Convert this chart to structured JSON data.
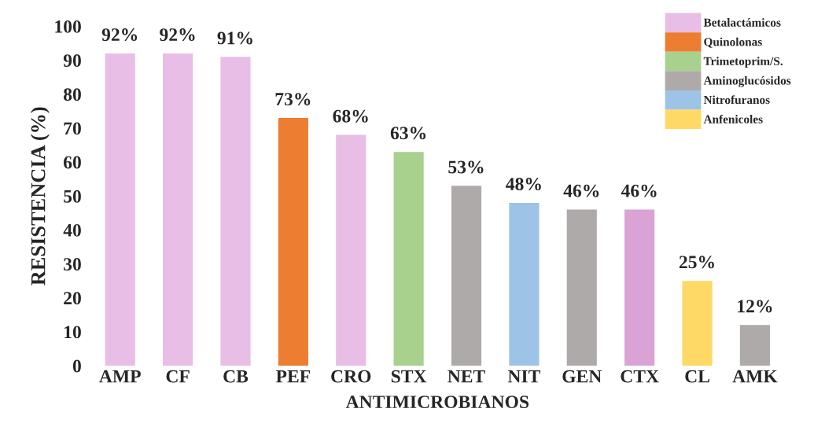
{
  "chart_data": {
    "type": "bar",
    "xlabel": "ANTIMICROBIANOS",
    "ylabel": "RESISTENCIA (%)",
    "categories": [
      "AMP",
      "CF",
      "CB",
      "PEF",
      "CRO",
      "STX",
      "NET",
      "NIT",
      "GEN",
      "CTX",
      "CL",
      "AMK"
    ],
    "series": [
      {
        "name": "Betalactámicos",
        "color": "#e8bde6",
        "colors": [
          "#e8bde6",
          "#e8bde6",
          "#e8bde6",
          null,
          "#e8bde6",
          null,
          null,
          null,
          null,
          "#d9a3d6",
          null,
          null
        ],
        "values": [
          92,
          92,
          91,
          null,
          68,
          null,
          null,
          null,
          null,
          46,
          null,
          null
        ],
        "value_labels": [
          "92%",
          "92%",
          "91%",
          null,
          "68%",
          null,
          null,
          null,
          null,
          "46%",
          null,
          null
        ]
      },
      {
        "name": "Quinolonas",
        "color": "#ed7d31",
        "values": [
          null,
          null,
          null,
          73,
          null,
          null,
          null,
          null,
          null,
          null,
          null,
          null
        ],
        "value_labels": [
          null,
          null,
          null,
          "73%",
          null,
          null,
          null,
          null,
          null,
          null,
          null,
          null
        ]
      },
      {
        "name": "Trimetoprim/S.",
        "color": "#a9d18e",
        "values": [
          null,
          null,
          null,
          null,
          null,
          63,
          null,
          null,
          null,
          null,
          null,
          null
        ],
        "value_labels": [
          null,
          null,
          null,
          null,
          null,
          "63%",
          null,
          null,
          null,
          null,
          null,
          null
        ]
      },
      {
        "name": "Aminoglucósidos",
        "color": "#aeaaaa",
        "values": [
          null,
          null,
          null,
          null,
          null,
          null,
          53,
          null,
          46,
          null,
          null,
          12
        ],
        "value_labels": [
          null,
          null,
          null,
          null,
          null,
          null,
          "53%",
          null,
          "46%",
          null,
          null,
          "12%"
        ]
      },
      {
        "name": "Nitrofuranos",
        "color": "#9dc3e6",
        "values": [
          null,
          null,
          null,
          null,
          null,
          null,
          null,
          48,
          null,
          null,
          null,
          null
        ],
        "value_labels": [
          null,
          null,
          null,
          null,
          null,
          null,
          null,
          "48%",
          null,
          null,
          null,
          null
        ]
      },
      {
        "name": "Anfenicoles",
        "color": "#ffd966",
        "colors": [
          null,
          null,
          null,
          null,
          null,
          null,
          null,
          null,
          null,
          null,
          "#ffd966",
          null
        ],
        "values": [
          null,
          null,
          null,
          null,
          null,
          null,
          null,
          null,
          null,
          null,
          25,
          null
        ],
        "value_labels": [
          null,
          null,
          null,
          null,
          null,
          null,
          null,
          null,
          null,
          null,
          "25%",
          null
        ]
      }
    ],
    "ylim": [
      0,
      100
    ],
    "yticks": [
      0,
      10,
      20,
      30,
      40,
      50,
      60,
      70,
      80,
      90,
      100
    ],
    "grid": false,
    "legend": "top right"
  }
}
